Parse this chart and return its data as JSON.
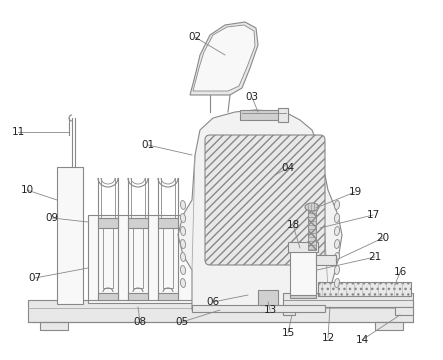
{
  "bg_color": "#ffffff",
  "lc": "#888888",
  "lc2": "#aaaaaa",
  "fc_body": "#f2f2f2",
  "fc_light": "#f8f8f8",
  "fc_mid": "#e8e8e8",
  "fc_dark": "#d0d0d0",
  "figsize": [
    4.43,
    3.6
  ],
  "dpi": 100,
  "labels": [
    [
      "01",
      148,
      145
    ],
    [
      "02",
      195,
      37
    ],
    [
      "03",
      252,
      97
    ],
    [
      "04",
      288,
      168
    ],
    [
      "05",
      182,
      322
    ],
    [
      "06",
      213,
      302
    ],
    [
      "07",
      35,
      278
    ],
    [
      "08",
      140,
      322
    ],
    [
      "09",
      52,
      218
    ],
    [
      "10",
      27,
      190
    ],
    [
      "11",
      18,
      132
    ],
    [
      "12",
      328,
      338
    ],
    [
      "13",
      270,
      310
    ],
    [
      "14",
      362,
      340
    ],
    [
      "15",
      288,
      333
    ],
    [
      "16",
      400,
      272
    ],
    [
      "17",
      373,
      215
    ],
    [
      "18",
      293,
      225
    ],
    [
      "19",
      355,
      192
    ],
    [
      "20",
      383,
      238
    ],
    [
      "21",
      375,
      257
    ]
  ]
}
